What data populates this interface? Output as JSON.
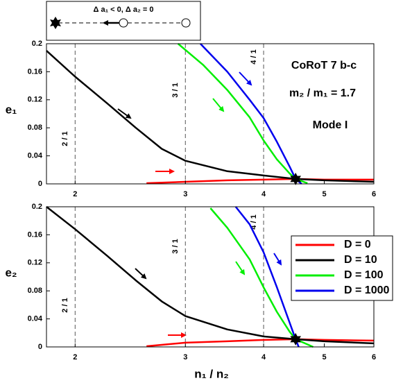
{
  "chart_data": [
    {
      "type": "line",
      "ylabel": "e₁",
      "xlog": true,
      "xlim": [
        1.8,
        6
      ],
      "xticks": [
        2,
        3,
        4,
        5,
        6
      ],
      "ylim": [
        0,
        0.2
      ],
      "yticks": [
        0,
        0.04,
        0.08,
        0.12,
        0.16,
        0.2
      ],
      "resonances": {
        "x": [
          2,
          3,
          4
        ],
        "labels": [
          "2 / 1",
          "3 / 1",
          "4 / 1"
        ]
      },
      "annotations": [
        "CoRoT 7 b-c",
        "m₂ / m₁ = 1.7",
        "Mode I",
        "Δ a₁ < 0, Δ a₂ = 0"
      ],
      "series": [
        {
          "color": "#ff0000",
          "x": [
            2.6,
            3,
            3.5,
            4,
            4.5,
            5,
            6
          ],
          "values": [
            0.001,
            0.003,
            0.005,
            0.006,
            0.007,
            0.006,
            0.006
          ]
        },
        {
          "color": "#000000",
          "x": [
            1.8,
            2,
            2.25,
            2.5,
            2.75,
            3,
            3.5,
            4,
            4.5,
            5,
            6
          ],
          "values": [
            0.19,
            0.153,
            0.115,
            0.08,
            0.05,
            0.033,
            0.018,
            0.012,
            0.007,
            0.005,
            0.003
          ]
        },
        {
          "color": "#00ee00",
          "x": [
            2.92,
            3.2,
            3.5,
            3.8,
            4,
            4.2,
            4.4,
            4.5,
            4.7
          ],
          "values": [
            0.2,
            0.17,
            0.134,
            0.095,
            0.062,
            0.035,
            0.015,
            0.007,
            0.001
          ]
        },
        {
          "color": "#0000ee",
          "x": [
            3.17,
            3.5,
            3.8,
            4,
            4.2,
            4.4,
            4.5,
            4.6
          ],
          "values": [
            0.2,
            0.16,
            0.12,
            0.094,
            0.06,
            0.025,
            0.007,
            0
          ]
        }
      ],
      "marker": {
        "x": 4.5,
        "y": 0.007
      }
    },
    {
      "type": "line",
      "ylabel": "e₂",
      "xlabel": "n₁ / n₂",
      "xlog": true,
      "xlim": [
        1.8,
        6
      ],
      "xticks": [
        2,
        3,
        4,
        5,
        6
      ],
      "ylim": [
        0,
        0.2
      ],
      "yticks": [
        0,
        0.04,
        0.08,
        0.12,
        0.16,
        0.2
      ],
      "resonances": {
        "x": [
          2,
          3,
          4
        ],
        "labels": [
          "2 / 1",
          "3 / 1",
          "4 / 1"
        ]
      },
      "legend": "right",
      "series": [
        {
          "name": "D = 0",
          "color": "#ff0000",
          "x": [
            2.6,
            3,
            3.5,
            4,
            4.5,
            5,
            6
          ],
          "values": [
            0.001,
            0.006,
            0.008,
            0.01,
            0.011,
            0.01,
            0.009
          ]
        },
        {
          "name": "D = 10",
          "color": "#000000",
          "x": [
            1.8,
            2,
            2.25,
            2.5,
            2.75,
            3,
            3.5,
            4,
            4.5,
            5,
            6
          ],
          "values": [
            0.2,
            0.168,
            0.13,
            0.095,
            0.065,
            0.044,
            0.025,
            0.015,
            0.011,
            0.008,
            0.005
          ]
        },
        {
          "name": "D = 100",
          "color": "#00ee00",
          "x": [
            3.29,
            3.5,
            3.8,
            4,
            4.2,
            4.4,
            4.5,
            4.8
          ],
          "values": [
            0.198,
            0.17,
            0.125,
            0.085,
            0.05,
            0.022,
            0.011,
            0
          ]
        },
        {
          "name": "D = 1000",
          "color": "#0000ee",
          "x": [
            3.61,
            3.8,
            4,
            4.2,
            4.4,
            4.5,
            4.55
          ],
          "values": [
            0.2,
            0.175,
            0.135,
            0.085,
            0.035,
            0.011,
            0
          ]
        }
      ],
      "marker": {
        "x": 4.5,
        "y": 0.011
      }
    }
  ]
}
